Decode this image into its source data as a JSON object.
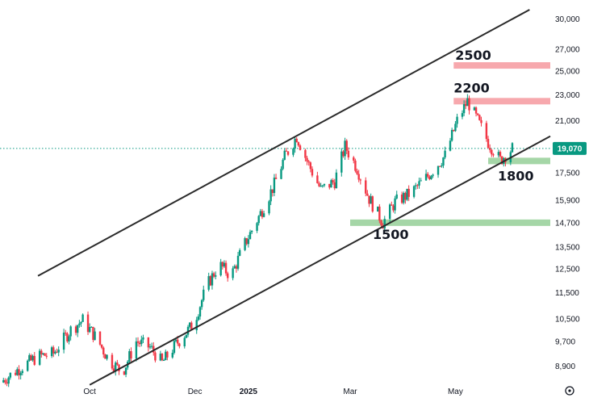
{
  "chart_data": {
    "type": "candlestick",
    "y_scale": "log",
    "ylim": [
      8300,
      31000
    ],
    "y_ticks": [
      "30,000",
      "27,000",
      "25,000",
      "23,000",
      "21,000",
      "17,500",
      "15,900",
      "14,700",
      "13,500",
      "12,500",
      "11,500",
      "10,500",
      "9,700",
      "8,900"
    ],
    "x_ticks": [
      {
        "label": "Oct",
        "date": "2024-10-01",
        "bold": false
      },
      {
        "label": "Dec",
        "date": "2024-12-01",
        "bold": false
      },
      {
        "label": "2025",
        "date": "2025-01-01",
        "bold": true
      },
      {
        "label": "Mar",
        "date": "2025-03-01",
        "bold": false
      },
      {
        "label": "May",
        "date": "2025-05-01",
        "bold": false
      }
    ],
    "x_range": [
      "2024-08-10",
      "2025-06-25"
    ],
    "last_price": {
      "label": "19,070",
      "value": 19070
    },
    "colors": {
      "up": "#089981",
      "down": "#f23645",
      "resistance_zone": "#f7a8ad",
      "support_zone": "#a5d6a7",
      "channel": "#2a2a2a",
      "last_price": "#089981"
    },
    "channel_lines": [
      {
        "name": "upper",
        "start": {
          "date": "2024-09-01",
          "value": 12200
        },
        "end": {
          "date": "2025-06-13",
          "value": 31000
        }
      },
      {
        "name": "lower",
        "start": {
          "date": "2024-10-01",
          "value": 8330
        },
        "end": {
          "date": "2025-06-25",
          "value": 19900
        }
      }
    ],
    "zones": [
      {
        "label": "2500",
        "kind": "resistance",
        "from_date": "2025-04-30",
        "to_date": "2025-06-25",
        "value": 25500
      },
      {
        "label": "2200",
        "kind": "resistance",
        "from_date": "2025-04-30",
        "to_date": "2025-06-25",
        "value": 22500
      },
      {
        "label": "1800",
        "kind": "support",
        "from_date": "2025-05-20",
        "to_date": "2025-06-25",
        "value": 18250
      },
      {
        "label": "1500",
        "kind": "support",
        "from_date": "2025-03-01",
        "to_date": "2025-06-25",
        "value": 14700
      }
    ],
    "price_path": [
      [
        "2024-08-10",
        8400
      ],
      [
        "2024-08-22",
        8850
      ],
      [
        "2024-09-01",
        9200
      ],
      [
        "2024-09-10",
        9300
      ],
      [
        "2024-09-20",
        10100
      ],
      [
        "2024-09-27",
        10450
      ],
      [
        "2024-10-05",
        9800
      ],
      [
        "2024-10-12",
        9100
      ],
      [
        "2024-10-20",
        8700
      ],
      [
        "2024-10-28",
        9700
      ],
      [
        "2024-11-05",
        9500
      ],
      [
        "2024-11-12",
        9000
      ],
      [
        "2024-11-20",
        9600
      ],
      [
        "2024-11-30",
        10300
      ],
      [
        "2024-12-08",
        11800
      ],
      [
        "2024-12-15",
        12700
      ],
      [
        "2024-12-22",
        12200
      ],
      [
        "2024-12-29",
        13500
      ],
      [
        "2025-01-07",
        15000
      ],
      [
        "2025-01-16",
        16800
      ],
      [
        "2025-01-22",
        18500
      ],
      [
        "2025-01-29",
        19900
      ],
      [
        "2025-02-05",
        18000
      ],
      [
        "2025-02-12",
        16500
      ],
      [
        "2025-02-20",
        17000
      ],
      [
        "2025-02-26",
        19200
      ],
      [
        "2025-03-05",
        17800
      ],
      [
        "2025-03-12",
        16000
      ],
      [
        "2025-03-20",
        14700
      ],
      [
        "2025-03-27",
        15800
      ],
      [
        "2025-04-05",
        16300
      ],
      [
        "2025-04-15",
        17300
      ],
      [
        "2025-04-25",
        18600
      ],
      [
        "2025-05-02",
        21000
      ],
      [
        "2025-05-08",
        22500
      ],
      [
        "2025-05-14",
        21000
      ],
      [
        "2025-05-20",
        19500
      ],
      [
        "2025-05-27",
        18300
      ],
      [
        "2025-06-03",
        19070
      ]
    ]
  }
}
